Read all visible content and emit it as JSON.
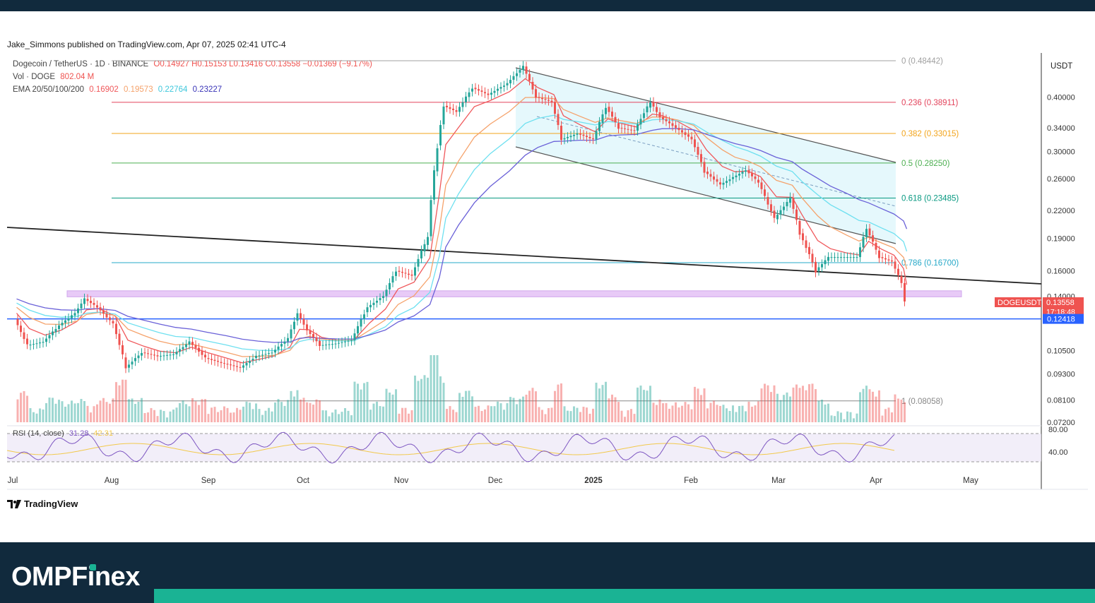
{
  "header": {
    "publisher": "Jake_Simmons published on TradingView.com, Apr 07, 2025 02:41 UTC-4"
  },
  "legend": {
    "symbol": "Dogecoin / TetherUS · 1D · BINANCE",
    "ohlc": "O0.14927  H0.15153  L0.13416  C0.13558  −0.01369 (−9.17%)",
    "vol_label": "Vol · DOGE",
    "vol_value": "802.04 M",
    "ema_label": "EMA 20/50/100/200",
    "ema20": "0.16902",
    "ema50": "0.19573",
    "ema100": "0.22764",
    "ema200": "0.23227",
    "rsi_label": "RSI (14, close)",
    "rsi_value": "31.28",
    "rsi_ma": "42.31"
  },
  "colors": {
    "ema20": "#f0585b",
    "ema50": "#f5a26b",
    "ema100": "#6ee0f0",
    "ema200": "#6a61d8",
    "up": "#26a69a",
    "down": "#ef5350",
    "support": "#2962ff",
    "zone": "#d9a7f2",
    "channel_fill": "#dff6fb",
    "brand_accent": "#1ab394"
  },
  "chart_data": {
    "type": "line",
    "symbol": "DOGEUSDT",
    "price_axis_label": "USDT",
    "y_scale": "log",
    "ylim": [
      0.072,
      0.52
    ],
    "y_ticks": [
      0.4,
      0.34,
      0.3,
      0.26,
      0.22,
      0.19,
      0.16,
      0.14,
      0.105,
      0.093,
      0.081,
      0.072
    ],
    "y_tick_labels": [
      "0.40000",
      "0.34000",
      "0.30000",
      "0.26000",
      "0.22000",
      "0.19000",
      "0.16000",
      "0.14000",
      "0.10500",
      "0.09300",
      "0.08100",
      "0.07200"
    ],
    "x_labels": [
      "Jul",
      "Aug",
      "Sep",
      "Oct",
      "Nov",
      "Dec",
      "2025",
      "Feb",
      "Mar",
      "Apr",
      "May"
    ],
    "last_price": "0.13558",
    "last_price_label": "DOGEUSDT",
    "countdown": "17:18:48",
    "support_level": 0.12418,
    "support_label": "0.12418",
    "fibonacci": [
      {
        "ratio": "0",
        "value": 0.48442,
        "label": "0 (0.48442)",
        "color": "#a0a0a0"
      },
      {
        "ratio": "0.236",
        "value": 0.38911,
        "label": "0.236 (0.38911)",
        "color": "#e3435b"
      },
      {
        "ratio": "0.382",
        "value": 0.33015,
        "label": "0.382 (0.33015)",
        "color": "#f2a41b"
      },
      {
        "ratio": "0.5",
        "value": 0.2825,
        "label": "0.5 (0.28250)",
        "color": "#4caf50"
      },
      {
        "ratio": "0.618",
        "value": 0.23485,
        "label": "0.618 (0.23485)",
        "color": "#089981"
      },
      {
        "ratio": "0.786",
        "value": 0.167,
        "label": "0.786 (0.16700)",
        "color": "#26a8c8"
      },
      {
        "ratio": "1",
        "value": 0.08058,
        "label": "1 (0.08058)",
        "color": "#888888"
      }
    ],
    "price_series": {
      "name": "DOGEUSDT",
      "points": [
        [
          "Jul 1",
          0.124
        ],
        [
          "Jul 5",
          0.108
        ],
        [
          "Jul 10",
          0.11
        ],
        [
          "Jul 15",
          0.12
        ],
        [
          "Jul 20",
          0.128
        ],
        [
          "Jul 23",
          0.138
        ],
        [
          "Jul 27",
          0.132
        ],
        [
          "Aug 1",
          0.121
        ],
        [
          "Aug 5",
          0.096
        ],
        [
          "Aug 10",
          0.104
        ],
        [
          "Aug 15",
          0.102
        ],
        [
          "Aug 20",
          0.103
        ],
        [
          "Aug 25",
          0.11
        ],
        [
          "Aug 30",
          0.101
        ],
        [
          "Sep 5",
          0.098
        ],
        [
          "Sep 10",
          0.096
        ],
        [
          "Sep 15",
          0.102
        ],
        [
          "Sep 20",
          0.104
        ],
        [
          "Sep 25",
          0.112
        ],
        [
          "Sep 28",
          0.128
        ],
        [
          "Oct 1",
          0.117
        ],
        [
          "Oct 5",
          0.108
        ],
        [
          "Oct 10",
          0.109
        ],
        [
          "Oct 15",
          0.111
        ],
        [
          "Oct 20",
          0.132
        ],
        [
          "Oct 25",
          0.14
        ],
        [
          "Oct 29",
          0.16
        ],
        [
          "Nov 3",
          0.156
        ],
        [
          "Nov 8",
          0.192
        ],
        [
          "Nov 11",
          0.31
        ],
        [
          "Nov 13",
          0.382
        ],
        [
          "Nov 17",
          0.37
        ],
        [
          "Nov 22",
          0.42
        ],
        [
          "Nov 27",
          0.405
        ],
        [
          "Dec 3",
          0.43
        ],
        [
          "Dec 8",
          0.47
        ],
        [
          "Dec 12",
          0.4
        ],
        [
          "Dec 17",
          0.39
        ],
        [
          "Dec 20",
          0.32
        ],
        [
          "Dec 25",
          0.33
        ],
        [
          "Dec 30",
          0.32
        ],
        [
          "Jan 3",
          0.38
        ],
        [
          "Jan 7",
          0.34
        ],
        [
          "Jan 12",
          0.335
        ],
        [
          "Jan 17",
          0.39
        ],
        [
          "Jan 20",
          0.36
        ],
        [
          "Jan 25",
          0.34
        ],
        [
          "Jan 30",
          0.32
        ],
        [
          "Feb 3",
          0.27
        ],
        [
          "Feb 8",
          0.252
        ],
        [
          "Feb 12",
          0.262
        ],
        [
          "Feb 16",
          0.272
        ],
        [
          "Feb 20",
          0.255
        ],
        [
          "Feb 25",
          0.21
        ],
        [
          "Mar 2",
          0.235
        ],
        [
          "Mar 5",
          0.195
        ],
        [
          "Mar 10",
          0.16
        ],
        [
          "Mar 14",
          0.172
        ],
        [
          "Mar 19",
          0.172
        ],
        [
          "Mar 23",
          0.172
        ],
        [
          "Mar 26",
          0.2
        ],
        [
          "Mar 30",
          0.172
        ],
        [
          "Apr 3",
          0.168
        ],
        [
          "Apr 6",
          0.15
        ],
        [
          "Apr 7",
          0.1356
        ]
      ]
    },
    "ema_series": [
      {
        "name": "EMA 20",
        "color": "#f0585b"
      },
      {
        "name": "EMA 50",
        "color": "#f5a26b"
      },
      {
        "name": "EMA 100",
        "color": "#6ee0f0"
      },
      {
        "name": "EMA 200",
        "color": "#6a61d8"
      }
    ],
    "rsi": {
      "levels": [
        80,
        40
      ],
      "level_labels": [
        "80.00",
        "40.00"
      ]
    }
  },
  "footer": {
    "tradingview": "TradingView",
    "brand_part1": "OMPF",
    "brand_i": "i",
    "brand_part2": "nex"
  }
}
